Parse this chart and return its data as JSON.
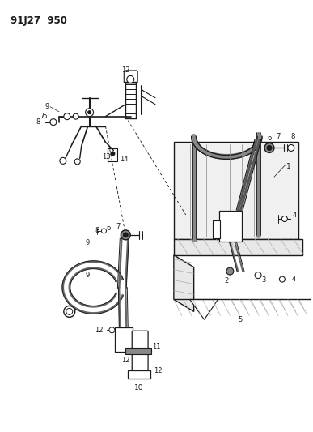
{
  "title": "91J27  950",
  "bg_color": "#ffffff",
  "line_color": "#1a1a1a",
  "figsize": [
    3.87,
    5.33
  ],
  "dpi": 100
}
